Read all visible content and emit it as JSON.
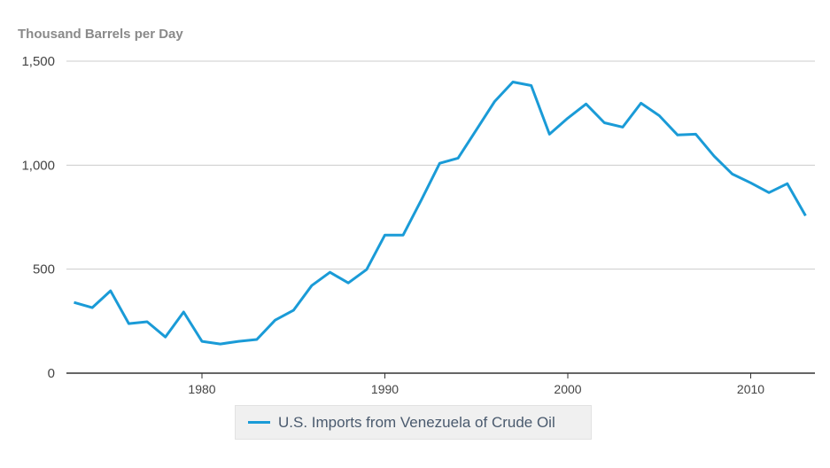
{
  "chart_data": {
    "type": "line",
    "title": "",
    "ylabel": "Thousand Barrels per Day",
    "xlabel": "",
    "ylim": [
      0,
      1500
    ],
    "xlim": [
      1972.3,
      2013.3
    ],
    "yticks": [
      0,
      500,
      1000,
      1500
    ],
    "ytick_labels": [
      "0",
      "500",
      "1,000",
      "1,500"
    ],
    "xticks": [
      1980,
      1990,
      2000,
      2010
    ],
    "xtick_labels": [
      "1980",
      "1990",
      "2000",
      "2010"
    ],
    "grid": "horizontal",
    "legend_placement": "bottom",
    "colors": {
      "series": "#1a9bd7",
      "grid": "#cccccc",
      "axis": "#333333"
    },
    "series": [
      {
        "name": "U.S. Imports from Venezuela of Crude Oil",
        "x": [
          1973,
          1974,
          1975,
          1976,
          1977,
          1978,
          1979,
          1980,
          1981,
          1982,
          1983,
          1984,
          1985,
          1986,
          1987,
          1988,
          1989,
          1990,
          1991,
          1992,
          1993,
          1994,
          1995,
          1996,
          1997,
          1998,
          1999,
          2000,
          2001,
          2002,
          2003,
          2004,
          2005,
          2006,
          2007,
          2008,
          2009,
          2010,
          2011,
          2012,
          2013
        ],
        "values": [
          340,
          315,
          396,
          238,
          247,
          174,
          294,
          153,
          140,
          153,
          162,
          255,
          302,
          421,
          485,
          434,
          498,
          664,
          664,
          834,
          1009,
          1034,
          1170,
          1306,
          1400,
          1383,
          1149,
          1226,
          1294,
          1204,
          1183,
          1298,
          1238,
          1145,
          1149,
          1043,
          957,
          915,
          868,
          911,
          757
        ]
      }
    ]
  }
}
